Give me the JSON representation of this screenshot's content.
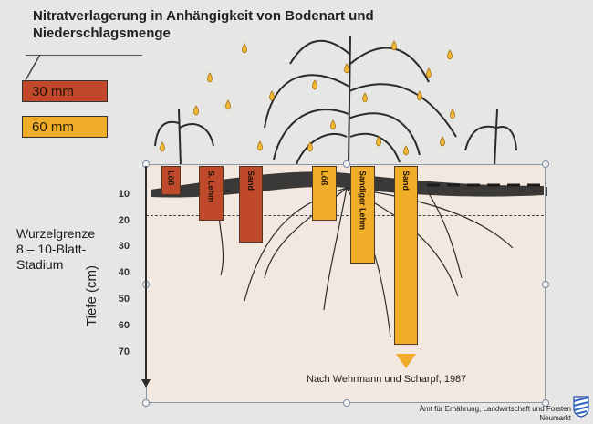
{
  "title": {
    "line1": "Nitratverlagerung  in Anhängigkeit von Bodenart und",
    "line2": "Niederschlagsmenge"
  },
  "legend": [
    {
      "label": "30 mm",
      "color": "#c0492b"
    },
    {
      "label": "60 mm",
      "color": "#f0ad2a"
    }
  ],
  "root_limit": {
    "line1": "Wurzelgrenze",
    "line2": "8 – 10-Blatt-",
    "line3": "Stadium"
  },
  "axis": {
    "label": "Tiefe (cm)",
    "ticks": [
      "10",
      "20",
      "30",
      "40",
      "50",
      "60",
      "70"
    ]
  },
  "bars": [
    {
      "label": "Löß",
      "precip": "30 mm",
      "depth_cm": 11,
      "color": "#c0492b"
    },
    {
      "label": "S. Lehm",
      "precip": "30 mm",
      "depth_cm": 21,
      "color": "#c0492b"
    },
    {
      "label": "Sand",
      "precip": "30 mm",
      "depth_cm": 29,
      "color": "#c0492b"
    },
    {
      "label": "Löß",
      "precip": "60 mm",
      "depth_cm": 21,
      "color": "#f0ad2a"
    },
    {
      "label": "Sandiger Lehm",
      "precip": "60 mm",
      "depth_cm": 37,
      "color": "#f0ad2a"
    },
    {
      "label": "Sand",
      "precip": "60 mm",
      "depth_cm": 68,
      "color": "#f0ad2a"
    }
  ],
  "citation": "Nach Wehrmann und Scharpf, 1987",
  "agency": {
    "line1": "Amt für Ernährung, Landwirtschaft und Forsten",
    "line2": "Neumarkt"
  }
}
